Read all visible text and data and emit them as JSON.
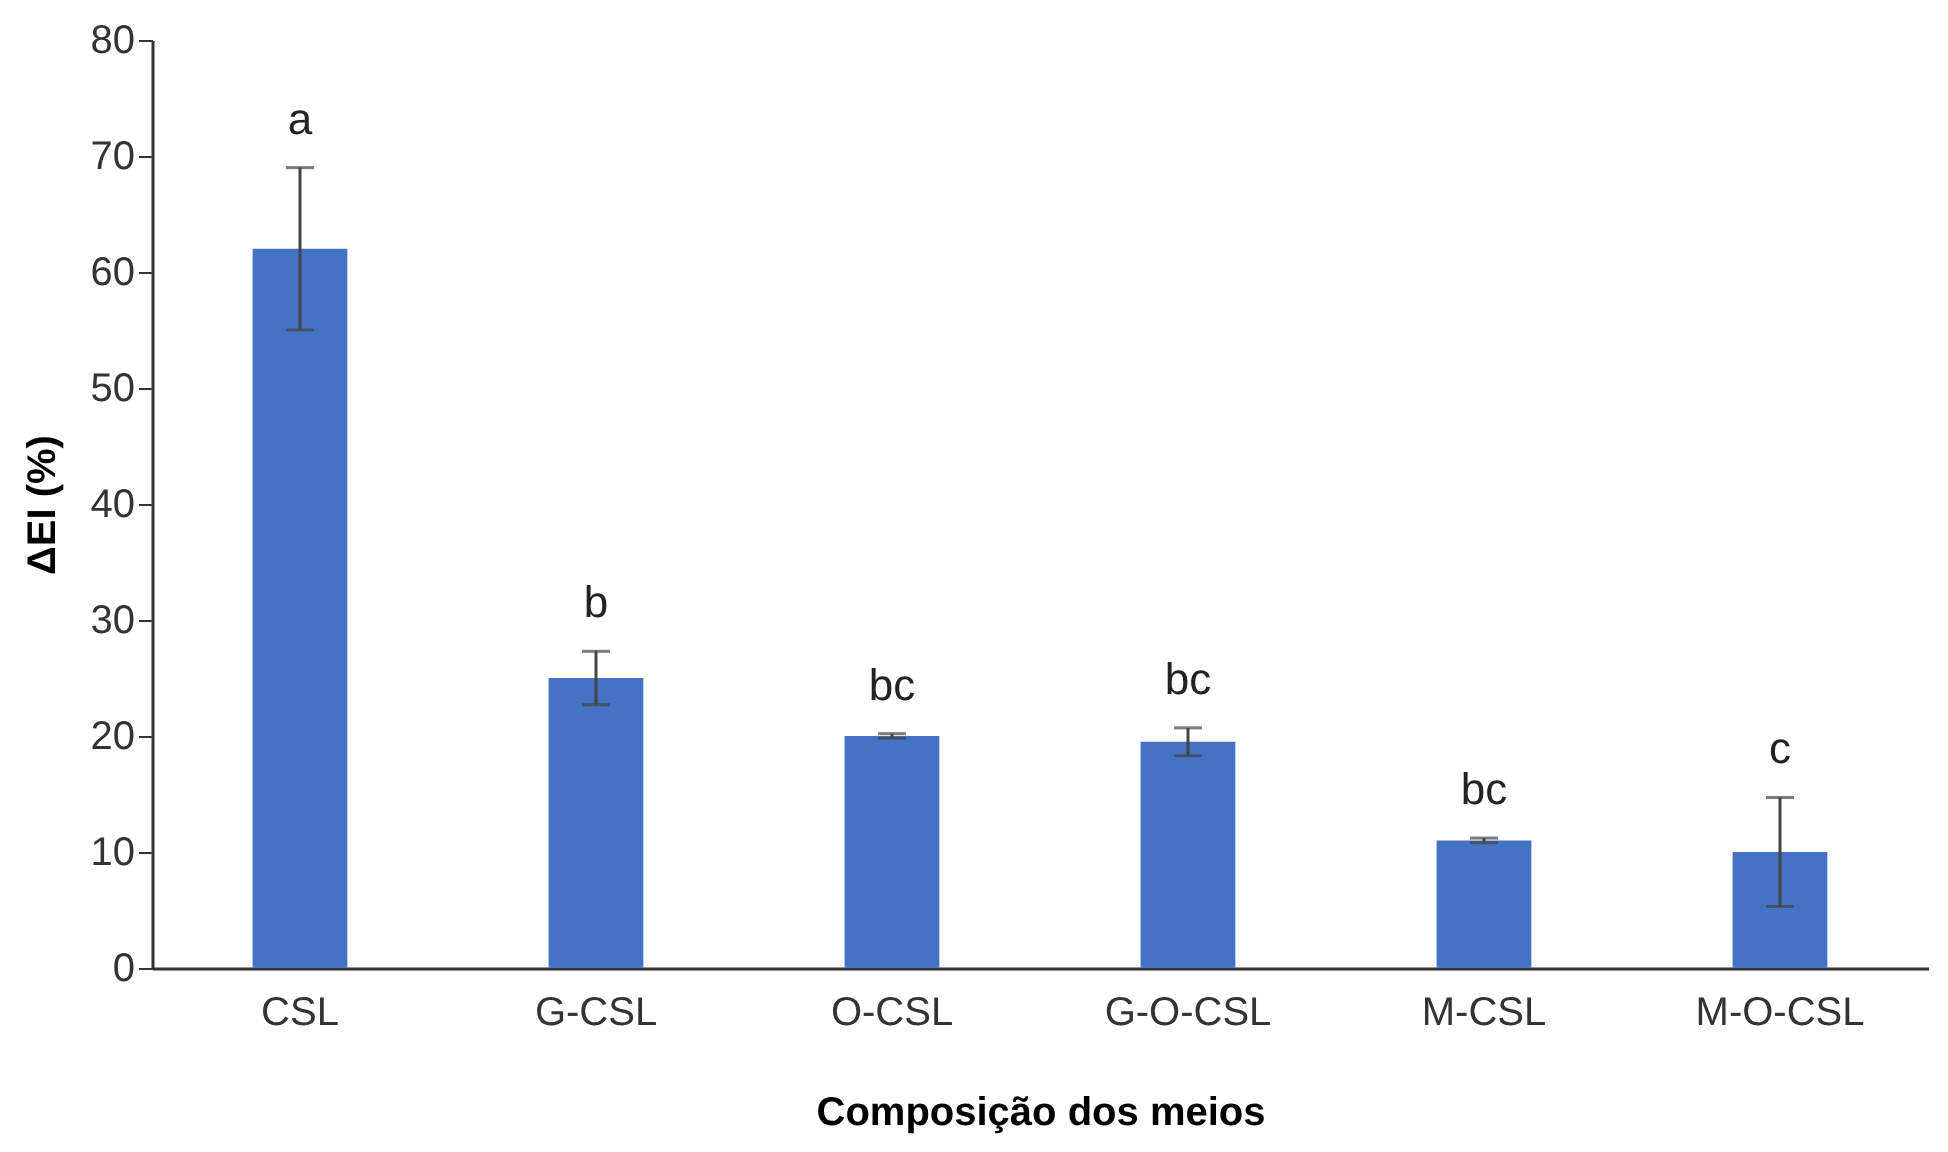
{
  "chart_data": {
    "type": "bar",
    "categories": [
      "CSL",
      "G-CSL",
      "O-CSL",
      "G-O-CSL",
      "M-CSL",
      "M-O-CSL"
    ],
    "values": [
      62,
      25,
      20,
      19.5,
      11,
      10
    ],
    "errors": [
      7,
      2.3,
      0.2,
      1.2,
      0.2,
      4.7
    ],
    "color": "#4472c4",
    "xlabel": "Composição dos meios",
    "ylabel": "ΔEI (%)",
    "ylim": [
      0,
      80
    ],
    "yticks": [
      0,
      10,
      20,
      30,
      40,
      50,
      60,
      70,
      80
    ],
    "grid": false,
    "annotations": [
      "a",
      "b",
      "bc",
      "bc",
      "bc",
      "c"
    ]
  }
}
